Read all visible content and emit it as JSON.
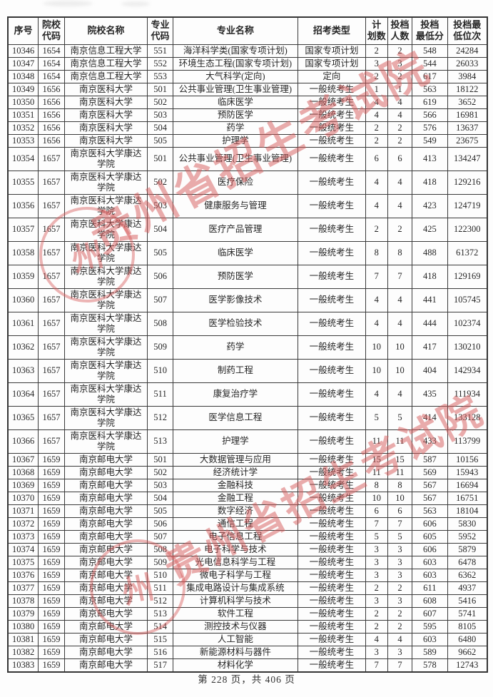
{
  "table": {
    "columns": [
      "序号",
      "院校\n代码",
      "院校名称",
      "专业\n代码",
      "专业名称",
      "招考类型",
      "计\n划数",
      "投档\n人数",
      "投档\n最低分",
      "投档最\n低位次"
    ],
    "column_keys": [
      "serial",
      "college-code",
      "college-name",
      "major-code",
      "major-name",
      "admission-type",
      "plan-count",
      "filed-count",
      "min-score",
      "min-rank"
    ],
    "rows": [
      [
        "10346",
        "1654",
        "南京信息工程大学",
        "551",
        "海洋科学类(国家专项计划)",
        "国家专项计划",
        "2",
        "2",
        "548",
        "24284"
      ],
      [
        "10347",
        "1654",
        "南京信息工程大学",
        "552",
        "环境生态工程(国家专项计划)",
        "国家专项计划",
        "3",
        "3",
        "544",
        "26033"
      ],
      [
        "10348",
        "1654",
        "南京信息工程大学",
        "553",
        "大气科学(定向)",
        "定向",
        "2",
        "2",
        "617",
        "3984"
      ],
      [
        "10349",
        "1656",
        "南京医科大学",
        "501",
        "公共事业管理(卫生事业管理)",
        "一般统考生",
        "1",
        "1",
        "563",
        "18122"
      ],
      [
        "10350",
        "1656",
        "南京医科大学",
        "502",
        "临床医学",
        "一般统考生",
        "4",
        "4",
        "619",
        "3652"
      ],
      [
        "10351",
        "1656",
        "南京医科大学",
        "503",
        "预防医学",
        "一般统考生",
        "4",
        "4",
        "566",
        "16981"
      ],
      [
        "10352",
        "1656",
        "南京医科大学",
        "504",
        "药学",
        "一般统考生",
        "2",
        "2",
        "576",
        "13637"
      ],
      [
        "10353",
        "1656",
        "南京医科大学",
        "505",
        "护理学",
        "一般统考生",
        "2",
        "2",
        "549",
        "23675"
      ],
      [
        "10354",
        "1657",
        "南京医科大学康达学院",
        "501",
        "公共事业管理(卫生事业管理)",
        "一般统考生",
        "6",
        "6",
        "413",
        "134247"
      ],
      [
        "10355",
        "1657",
        "南京医科大学康达学院",
        "502",
        "医疗保险",
        "一般统考生",
        "4",
        "4",
        "418",
        "129216"
      ],
      [
        "10356",
        "1657",
        "南京医科大学康达学院",
        "503",
        "健康服务与管理",
        "一般统考生",
        "4",
        "4",
        "423",
        "124719"
      ],
      [
        "10357",
        "1657",
        "南京医科大学康达学院",
        "504",
        "医疗产品管理",
        "一般统考生",
        "2",
        "2",
        "425",
        "122300"
      ],
      [
        "10358",
        "1657",
        "南京医科大学康达学院",
        "505",
        "临床医学",
        "一般统考生",
        "8",
        "8",
        "488",
        "61372"
      ],
      [
        "10359",
        "1657",
        "南京医科大学康达学院",
        "506",
        "预防医学",
        "一般统考生",
        "7",
        "7",
        "418",
        "129169"
      ],
      [
        "10360",
        "1657",
        "南京医科大学康达学院",
        "507",
        "医学影像技术",
        "一般统考生",
        "4",
        "4",
        "441",
        "105745"
      ],
      [
        "10361",
        "1657",
        "南京医科大学康达学院",
        "508",
        "医学检验技术",
        "一般统考生",
        "4",
        "4",
        "444",
        "102374"
      ],
      [
        "10362",
        "1657",
        "南京医科大学康达学院",
        "509",
        "药学",
        "一般统考生",
        "10",
        "10",
        "417",
        "130210"
      ],
      [
        "10363",
        "1657",
        "南京医科大学康达学院",
        "510",
        "制药工程",
        "一般统考生",
        "10",
        "10",
        "404",
        "142934"
      ],
      [
        "10364",
        "1657",
        "南京医科大学康达学院",
        "511",
        "康复治疗学",
        "一般统考生",
        "4",
        "4",
        "435",
        "111934"
      ],
      [
        "10365",
        "1657",
        "南京医科大学康达学院",
        "512",
        "医学信息工程",
        "一般统考生",
        "5",
        "5",
        "414",
        "133128"
      ],
      [
        "10366",
        "1657",
        "南京医科大学康达学院",
        "513",
        "护理学",
        "一般统考生",
        "11",
        "11",
        "433",
        "113799"
      ],
      [
        "10367",
        "1659",
        "南京邮电大学",
        "501",
        "大数据管理与应用",
        "一般统考生",
        "15",
        "15",
        "587",
        "10156"
      ],
      [
        "10368",
        "1659",
        "南京邮电大学",
        "502",
        "经济统计学",
        "一般统考生",
        "11",
        "11",
        "569",
        "15943"
      ],
      [
        "10369",
        "1659",
        "南京邮电大学",
        "503",
        "金融科技",
        "一般统考生",
        "8",
        "8",
        "567",
        "16694"
      ],
      [
        "10370",
        "1659",
        "南京邮电大学",
        "504",
        "金融工程",
        "一般统考生",
        "10",
        "10",
        "567",
        "16751"
      ],
      [
        "10371",
        "1659",
        "南京邮电大学",
        "505",
        "数字经济",
        "一般统考生",
        "6",
        "6",
        "563",
        "18104"
      ],
      [
        "10372",
        "1659",
        "南京邮电大学",
        "506",
        "通信工程",
        "一般统考生",
        "7",
        "7",
        "606",
        "5830"
      ],
      [
        "10373",
        "1659",
        "南京邮电大学",
        "507",
        "电子信息工程",
        "一般统考生",
        "5",
        "5",
        "605",
        "5952"
      ],
      [
        "10374",
        "1659",
        "南京邮电大学",
        "508",
        "电子科学与技术",
        "一般统考生",
        "3",
        "3",
        "606",
        "5879"
      ],
      [
        "10375",
        "1659",
        "南京邮电大学",
        "509",
        "光电信息科学与工程",
        "一般统考生",
        "3",
        "3",
        "603",
        "6478"
      ],
      [
        "10376",
        "1659",
        "南京邮电大学",
        "510",
        "微电子科学与工程",
        "一般统考生",
        "3",
        "3",
        "603",
        "6362"
      ],
      [
        "10377",
        "1659",
        "南京邮电大学",
        "511",
        "集成电路设计与集成系统",
        "一般统考生",
        "2",
        "2",
        "611",
        "4937"
      ],
      [
        "10378",
        "1659",
        "南京邮电大学",
        "512",
        "计算机科学与技术",
        "一般统考生",
        "3",
        "3",
        "608",
        "5416"
      ],
      [
        "10379",
        "1659",
        "南京邮电大学",
        "513",
        "软件工程",
        "一般统考生",
        "2",
        "2",
        "607",
        "5741"
      ],
      [
        "10380",
        "1659",
        "南京邮电大学",
        "514",
        "测控技术与仪器",
        "一般统考生",
        "2",
        "2",
        "595",
        "8105"
      ],
      [
        "10381",
        "1659",
        "南京邮电大学",
        "515",
        "人工智能",
        "一般统考生",
        "4",
        "4",
        "603",
        "6480"
      ],
      [
        "10382",
        "1659",
        "南京邮电大学",
        "516",
        "新能源材料与器件",
        "一般统考生",
        "3",
        "3",
        "589",
        "9662"
      ],
      [
        "10383",
        "1659",
        "南京邮电大学",
        "517",
        "材料化学",
        "一般统考生",
        "7",
        "7",
        "578",
        "12743"
      ]
    ]
  },
  "watermark": {
    "text": "贵州省招生考试院",
    "seal_glyph": "州",
    "color": "#d65a5a"
  },
  "footer": {
    "current_page": "228",
    "total_pages": "406",
    "text": "第 228 页，共 406 页"
  }
}
